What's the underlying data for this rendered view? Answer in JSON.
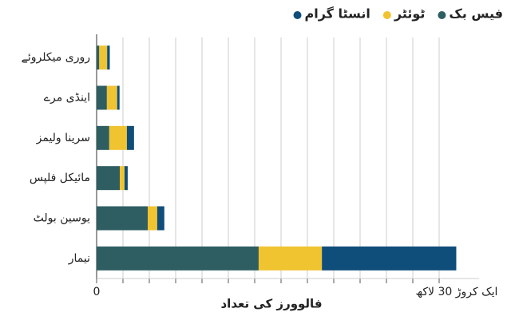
{
  "chart_data": {
    "type": "stacked-bar-horizontal",
    "x_label": "فالوورز کی تعداد",
    "categories": [
      "روری میکلروئے",
      "اینڈی مرے",
      "سرینا ولیمز",
      "مائیکل فلپس",
      "یوسین بولٹ",
      "نیمار"
    ],
    "series": [
      {
        "name": "فیس بک",
        "color": "#2e5e62",
        "values": [
          1,
          3.9,
          4.8,
          8.8,
          19.4,
          61.5
        ]
      },
      {
        "name": "ٹوئٹر",
        "color": "#f0c330",
        "values": [
          3,
          3.9,
          6.7,
          1.8,
          3.6,
          24
        ]
      },
      {
        "name": "انسٹا گرام",
        "color": "#0f4e7a",
        "values": [
          1,
          0.9,
          2.7,
          1.2,
          2.7,
          51
        ]
      }
    ],
    "xlim": [
      0,
      145
    ],
    "xticks": [
      0,
      {
        "value": 130,
        "label": "ایک کروڑ 30 لاکھ"
      }
    ],
    "grid_lines": [
      10,
      20,
      30,
      40,
      50,
      60,
      70,
      80,
      90,
      100,
      110,
      120,
      130
    ],
    "grid": true
  }
}
